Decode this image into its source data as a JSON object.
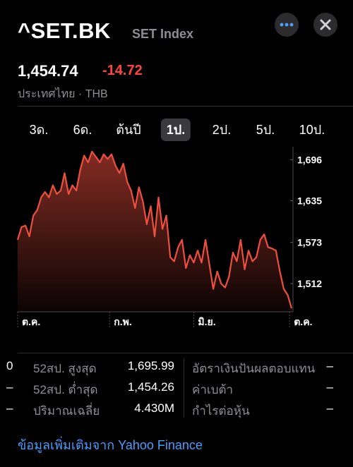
{
  "header": {
    "symbol": "^SET.BK",
    "name": "SET Index",
    "price": "1,454.74",
    "change": "-14.72",
    "market": "ประเทศไทย · THB"
  },
  "ranges": {
    "items": [
      "3ด.",
      "6ด.",
      "ต้นปี",
      "1ป.",
      "2ป.",
      "5ป.",
      "10ป."
    ],
    "selected": 3
  },
  "chart_data": {
    "type": "line",
    "color": "#ef4f3f",
    "values": [
      1577,
      1596,
      1598,
      1582,
      1613,
      1621,
      1640,
      1648,
      1640,
      1658,
      1645,
      1650,
      1676,
      1645,
      1658,
      1650,
      1681,
      1702,
      1692,
      1708,
      1700,
      1692,
      1704,
      1697,
      1704,
      1687,
      1676,
      1690,
      1663,
      1650,
      1624,
      1655,
      1634,
      1600,
      1627,
      1582,
      1640,
      1593,
      1613,
      1551,
      1545,
      1566,
      1577,
      1535,
      1554,
      1543,
      1561,
      1543,
      1577,
      1540,
      1504,
      1530,
      1512,
      1506,
      1522,
      1558,
      1545,
      1577,
      1533,
      1561,
      1545,
      1551,
      1577,
      1585,
      1566,
      1564,
      1561,
      1530,
      1504,
      1495,
      1475
    ],
    "xlim": [
      0,
      70
    ],
    "xticks": [
      {
        "value": 0,
        "label": "ต.ค."
      },
      {
        "value": 23.5,
        "label": "ก.พ."
      },
      {
        "value": 45,
        "label": "มิ.ย."
      },
      {
        "value": 69.5,
        "label": "ต.ค."
      }
    ],
    "ylim": [
      1470,
      1711
    ],
    "yticks": [
      {
        "value": 1696,
        "label": "1,696"
      },
      {
        "value": 1635,
        "label": "1,635"
      },
      {
        "value": 1573,
        "label": "1,573"
      },
      {
        "value": 1512,
        "label": "1,512"
      }
    ]
  },
  "stats": {
    "rows": [
      [
        "0",
        "52สป. สูงสุด",
        "1,695.99",
        "อัตราเงินปันผลตอบแทน",
        "–"
      ],
      [
        "–",
        "52สป. ต่ำสุด",
        "1,454.26",
        "ค่าเบต้า",
        "–"
      ],
      [
        "–",
        "ปริมาณเฉลี่ย",
        "4.430M",
        "กำไรต่อหุ้น",
        "–"
      ]
    ]
  },
  "footer": {
    "text": "ข้อมูลเพิ่มเติมจาก",
    "link": "Yahoo Finance"
  }
}
